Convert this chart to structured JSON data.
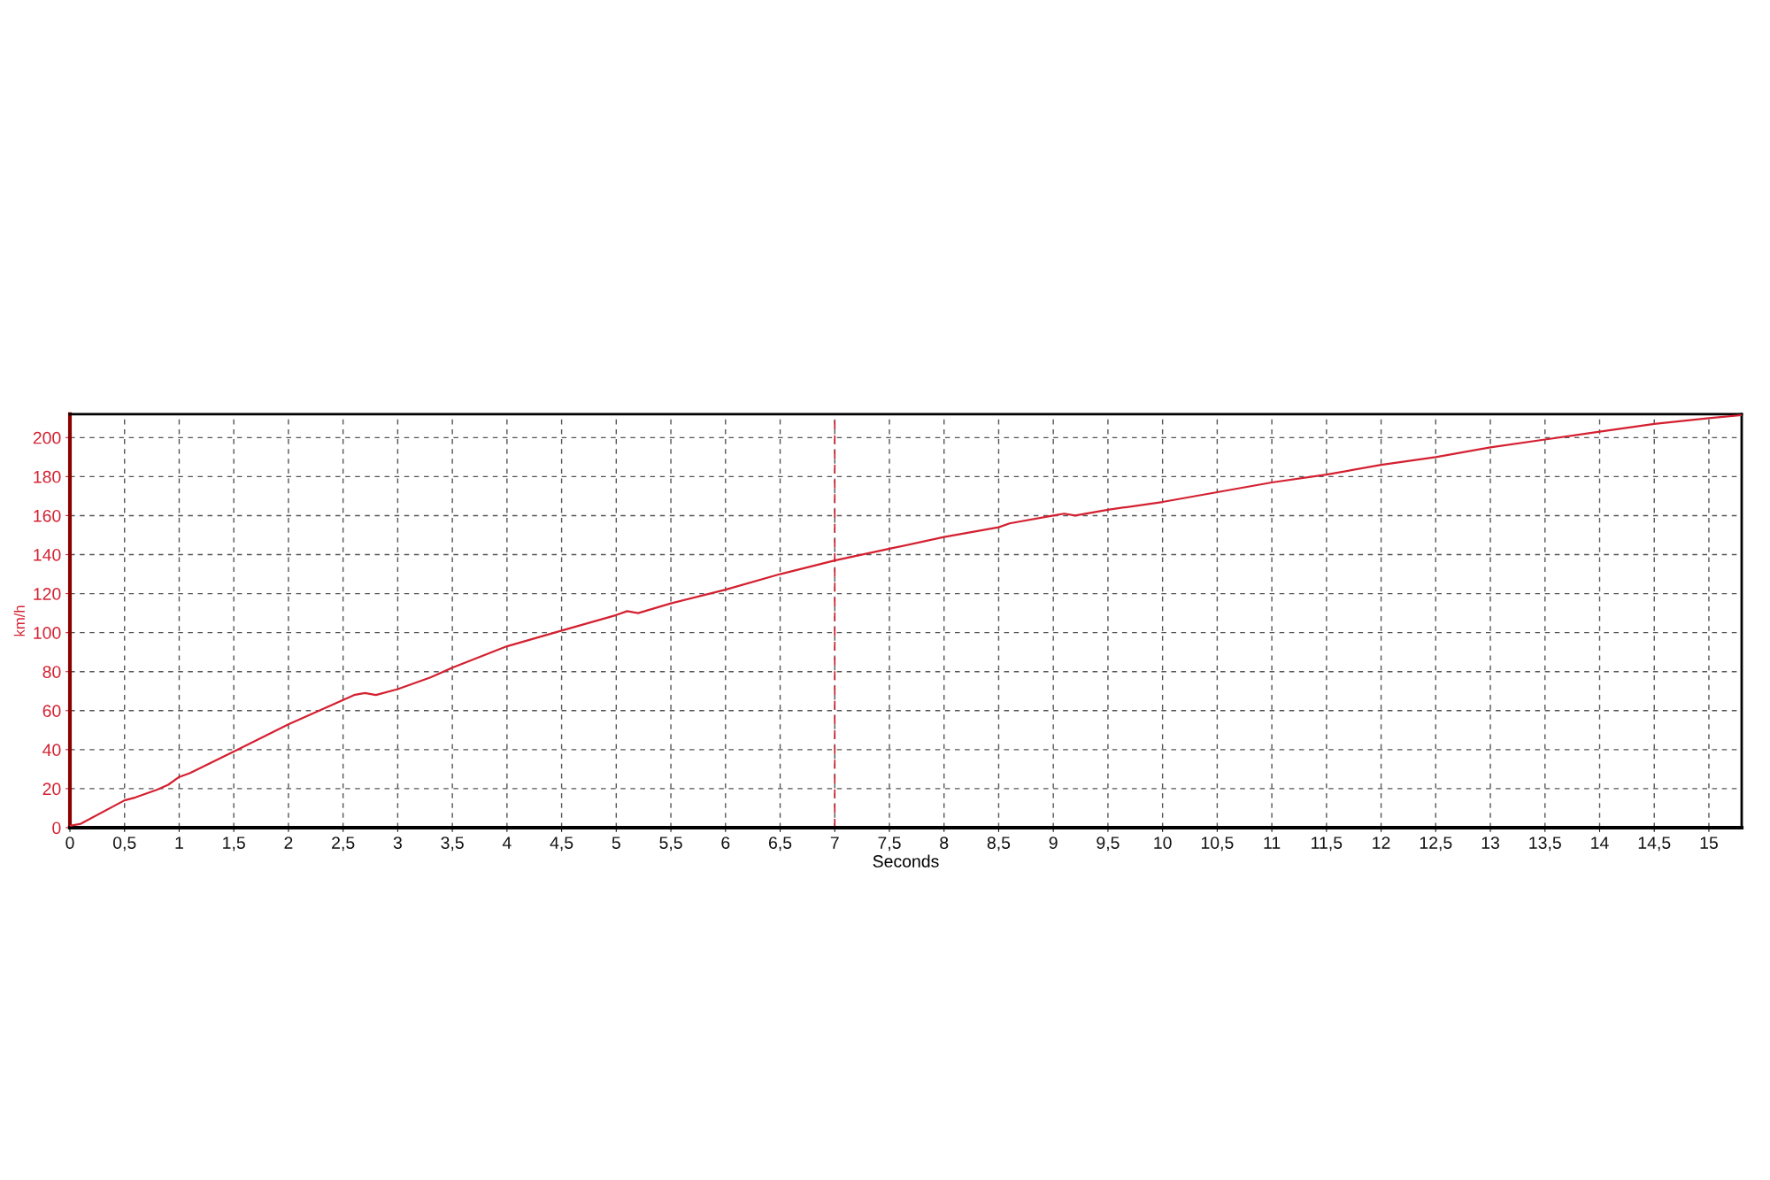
{
  "chart_data": {
    "type": "line",
    "xlabel": "Seconds",
    "ylabel": "km/h",
    "xlim": [
      0,
      15.3
    ],
    "ylim": [
      0,
      212
    ],
    "xticks": [
      0,
      {
        "value": 0.5,
        "label": "0,5"
      },
      1,
      {
        "value": 1.5,
        "label": "1,5"
      },
      2,
      {
        "value": 2.5,
        "label": "2,5"
      },
      3,
      {
        "value": 3.5,
        "label": "3,5"
      },
      4,
      {
        "value": 4.5,
        "label": "4,5"
      },
      5,
      {
        "value": 5.5,
        "label": "5,5"
      },
      6,
      {
        "value": 6.5,
        "label": "6,5"
      },
      7,
      {
        "value": 7.5,
        "label": "7,5"
      },
      8,
      {
        "value": 8.5,
        "label": "8,5"
      },
      9,
      {
        "value": 9.5,
        "label": "9,5"
      },
      10,
      {
        "value": 10.5,
        "label": "10,5"
      },
      11,
      {
        "value": 11.5,
        "label": "11,5"
      },
      12,
      {
        "value": 12.5,
        "label": "12,5"
      },
      13,
      {
        "value": 13.5,
        "label": "13,5"
      },
      14,
      {
        "value": 14.5,
        "label": "14,5"
      },
      15
    ],
    "yticks": [
      0,
      20,
      40,
      60,
      80,
      100,
      120,
      140,
      160,
      180,
      200
    ],
    "grid": true,
    "marker": "none",
    "line_style": "solid",
    "ref_lines": [
      {
        "axis": "x",
        "value": 7,
        "color": "#c8202c",
        "line_style": "dashed"
      }
    ],
    "series": [
      {
        "color": "#d42030",
        "x": [
          0,
          0.1,
          0.5,
          0.6,
          0.8,
          0.9,
          1.0,
          1.1,
          1.5,
          2.0,
          2.4,
          2.6,
          2.7,
          2.8,
          3.0,
          3.3,
          3.5,
          4.0,
          4.5,
          5.0,
          5.1,
          5.2,
          5.5,
          6.0,
          6.5,
          7.0,
          7.5,
          8.0,
          8.5,
          8.6,
          9.0,
          9.1,
          9.2,
          9.5,
          10.0,
          10.5,
          11.0,
          11.5,
          12.0,
          12.5,
          13.0,
          13.5,
          14.0,
          14.5,
          15.0,
          15.3
        ],
        "values": [
          1,
          2,
          14,
          15.5,
          19.5,
          22,
          26,
          28,
          39,
          53,
          63,
          68,
          69,
          68,
          71,
          77,
          82,
          93,
          101,
          109,
          111,
          110,
          115,
          122,
          130,
          137,
          143,
          149,
          154,
          156,
          160,
          161,
          160,
          163,
          167,
          172,
          177,
          181,
          186,
          190,
          195,
          199,
          203,
          207,
          210,
          211.5
        ]
      }
    ]
  }
}
